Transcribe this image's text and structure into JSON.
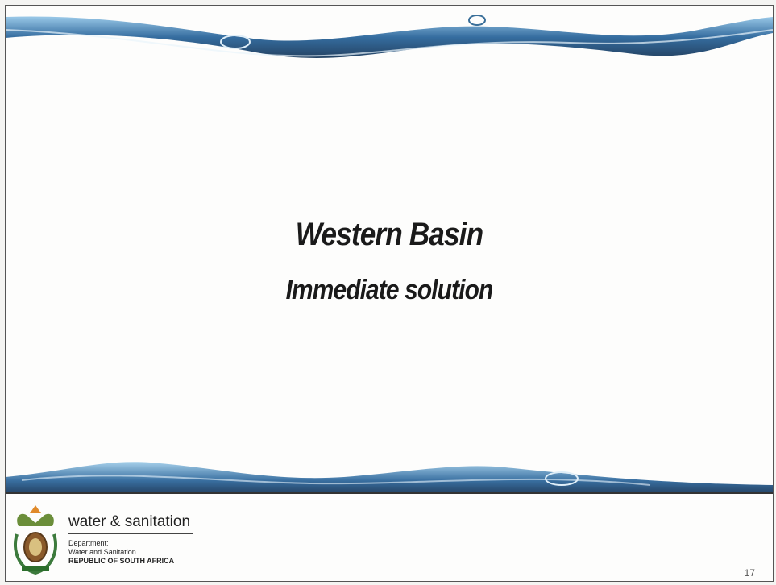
{
  "slide": {
    "title": "Western Basin",
    "subtitle": "Immediate solution"
  },
  "footer": {
    "brand": "water & sanitation",
    "department": "Department:",
    "department_name": "Water and Sanitation",
    "country": "REPUBLIC OF SOUTH AFRICA",
    "page_number": 17
  }
}
